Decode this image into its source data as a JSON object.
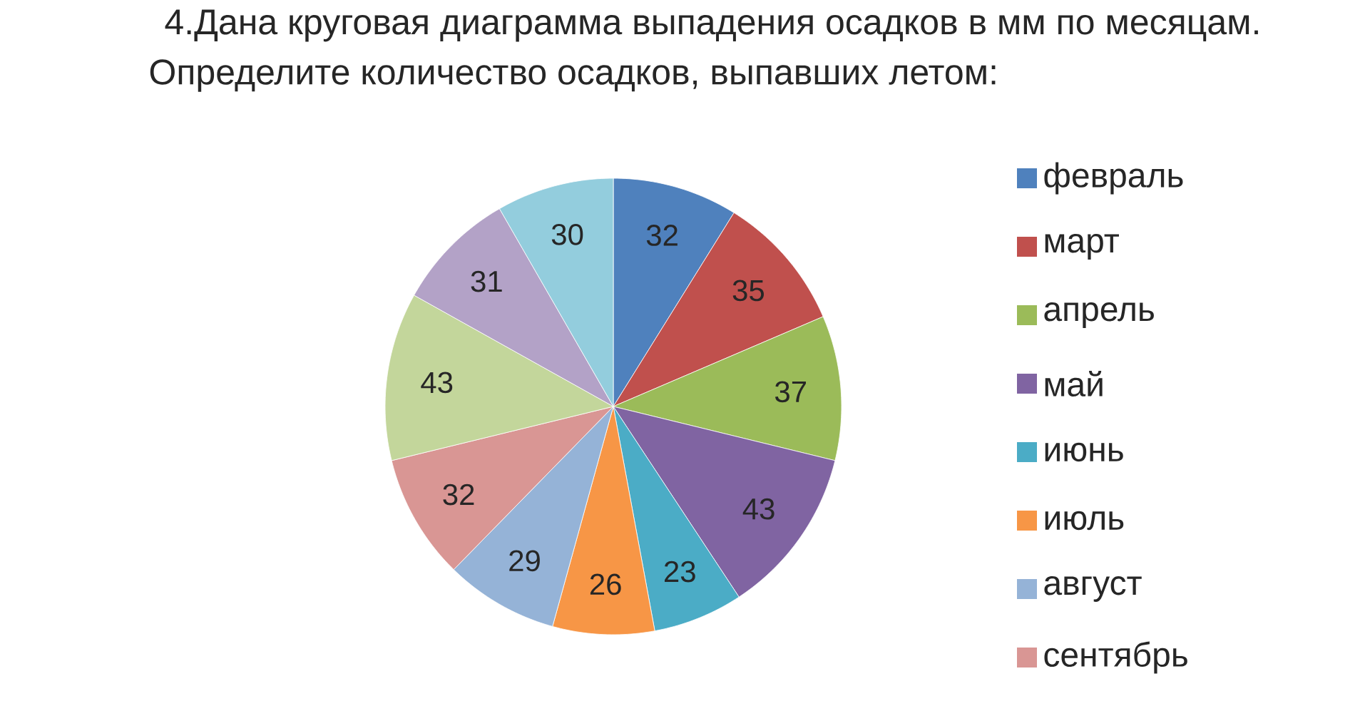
{
  "chart_data": {
    "type": "pie",
    "title": "4.Дана круговая диаграмма выпадения осадков в мм по месяцам.",
    "subtitle": "Определите количество осадков, выпавших летом:",
    "categories": [
      "февраль",
      "март",
      "апрель",
      "май",
      "июнь",
      "июль",
      "август",
      "сентябрь",
      null,
      null,
      null
    ],
    "values": [
      32,
      35,
      37,
      43,
      23,
      26,
      29,
      32,
      43,
      31,
      30
    ],
    "colors": [
      "#4f81bd",
      "#c0504d",
      "#9bbb59",
      "#8064a2",
      "#4bacc6",
      "#f79646",
      "#95b3d7",
      "#d99694",
      "#c3d69b",
      "#b3a2c7",
      "#93cddd"
    ],
    "data_labels": true,
    "legend": "right"
  }
}
